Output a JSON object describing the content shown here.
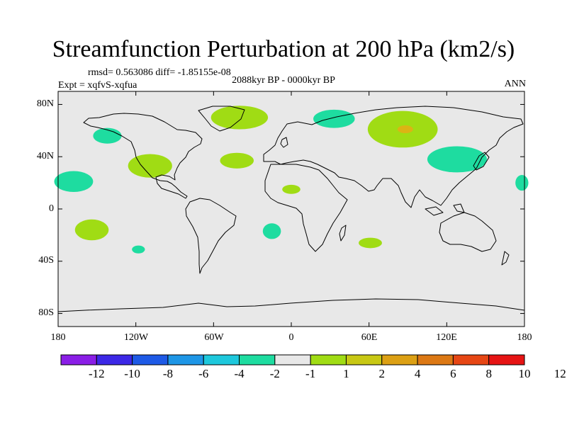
{
  "title": "Streamfunction Perturbation at 200 hPa (km2/s)",
  "stats": "rmsd= 0.563086 diff= -1.85155e-08",
  "experiment": "Expt = xqfvS-xqfua",
  "period": "2088kyr BP - 0000kyr BP",
  "season": "ANN",
  "axes": {
    "lat_ticks": [
      "80N",
      "40N",
      "0",
      "40S",
      "80S"
    ],
    "lon_ticks": [
      "180",
      "120W",
      "60W",
      "0",
      "60E",
      "120E",
      "180"
    ]
  },
  "colorbar": {
    "colors": [
      "#8a1ee6",
      "#3c28e6",
      "#1e5ae6",
      "#1e96e6",
      "#1ec8dc",
      "#1edca0",
      "#e8e8e8",
      "#a0dc14",
      "#c8c814",
      "#dca014",
      "#dc7814",
      "#e64614",
      "#e61414"
    ],
    "labels": [
      "-12",
      "-10",
      "-8",
      "-6",
      "-4",
      "-2",
      "-1",
      "1",
      "2",
      "4",
      "6",
      "8",
      "10",
      "12"
    ]
  },
  "colors": {
    "ocean_land_fill": "#e8e8e8",
    "negative_anomaly": "#1edca0",
    "positive_anomaly": "#a0dc14",
    "strong_positive": "#dcb414"
  },
  "anomaly_regions": [
    {
      "name": "greenland",
      "lon": -40,
      "lat": 70,
      "rlon": 22,
      "rlat": 9,
      "level": "positive"
    },
    {
      "name": "n-atlantic-west",
      "lon": -142,
      "lat": 56,
      "rlon": 11,
      "rlat": 6,
      "level": "negative"
    },
    {
      "name": "scandinavia",
      "lon": 33,
      "lat": 69,
      "rlon": 16,
      "rlat": 7,
      "level": "negative"
    },
    {
      "name": "siberia",
      "lon": 86,
      "lat": 61,
      "rlon": 27,
      "rlat": 14,
      "level": "positive"
    },
    {
      "name": "siberia-core",
      "lon": 88,
      "lat": 61,
      "rlon": 6,
      "rlat": 3,
      "level": "strong"
    },
    {
      "name": "n-america",
      "lon": -109,
      "lat": 33,
      "rlon": 17,
      "rlat": 9,
      "level": "positive"
    },
    {
      "name": "mid-atlantic",
      "lon": -42,
      "lat": 37,
      "rlon": 13,
      "rlat": 6,
      "level": "positive"
    },
    {
      "name": "n-pacific-east",
      "lon": -168,
      "lat": 21,
      "rlon": 15,
      "rlat": 8,
      "level": "negative"
    },
    {
      "name": "w-pacific",
      "lon": 128,
      "lat": 38,
      "rlon": 23,
      "rlat": 10,
      "level": "negative"
    },
    {
      "name": "e-pacific-edge",
      "lon": 178,
      "lat": 20,
      "rlon": 5,
      "rlat": 6,
      "level": "negative"
    },
    {
      "name": "sahel",
      "lon": 0,
      "lat": 15,
      "rlon": 7,
      "rlat": 3.5,
      "level": "positive"
    },
    {
      "name": "s-pacific",
      "lon": -154,
      "lat": -16,
      "rlon": 13,
      "rlat": 8,
      "level": "positive"
    },
    {
      "name": "s-pacific-small",
      "lon": -118,
      "lat": -31,
      "rlon": 5,
      "rlat": 3,
      "level": "negative"
    },
    {
      "name": "s-atlantic",
      "lon": -15,
      "lat": -17,
      "rlon": 7,
      "rlat": 6,
      "level": "negative"
    },
    {
      "name": "s-indian",
      "lon": 61,
      "lat": -26,
      "rlon": 9,
      "rlat": 4,
      "level": "positive"
    }
  ]
}
